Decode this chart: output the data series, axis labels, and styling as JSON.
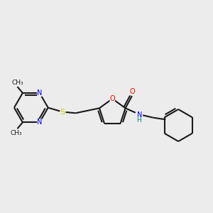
{
  "background_color": "#ececec",
  "bond_color": "#1a1a1a",
  "atom_colors": {
    "N": "#0000ff",
    "O": "#ff0000",
    "S": "#cccc00",
    "H": "#008b8b",
    "C": "#1a1a1a"
  },
  "figsize": [
    3.0,
    3.0
  ],
  "dpi": 100,
  "lw": 1.5,
  "fs": 7.0
}
